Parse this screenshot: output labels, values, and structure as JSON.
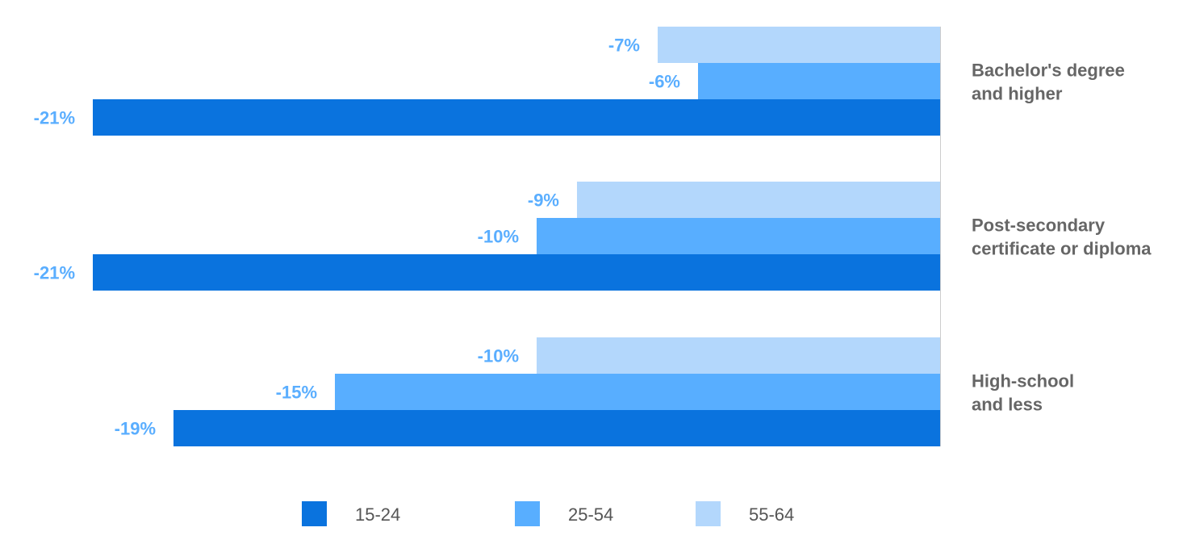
{
  "chart_data": {
    "type": "bar",
    "orientation": "horizontal",
    "categories": [
      "Bachelor's degree and higher",
      "Post-secondary certificate or diploma",
      "High-school and less"
    ],
    "category_lines": [
      [
        "Bachelor's degree",
        "and higher"
      ],
      [
        "Post-secondary",
        "certificate or diploma"
      ],
      [
        "High-school",
        "and less"
      ]
    ],
    "series": [
      {
        "name": "15-24",
        "color": "#0a73de",
        "values": [
          -21,
          -21,
          -19
        ],
        "labels": [
          "-21%",
          "-21%",
          "-19%"
        ]
      },
      {
        "name": "25-54",
        "color": "#58aeff",
        "values": [
          -6,
          -10,
          -15
        ],
        "labels": [
          "-6%",
          "-10%",
          "-15%"
        ]
      },
      {
        "name": "55-64",
        "color": "#b3d7fc",
        "values": [
          -7,
          -9,
          -10
        ],
        "labels": [
          "-7%",
          "-9%",
          "-10%"
        ]
      }
    ],
    "xlim": [
      -21,
      0
    ],
    "value_label_color": "#5aaeff",
    "category_label_color": "#666666",
    "legend_position": "bottom",
    "grid": false
  }
}
